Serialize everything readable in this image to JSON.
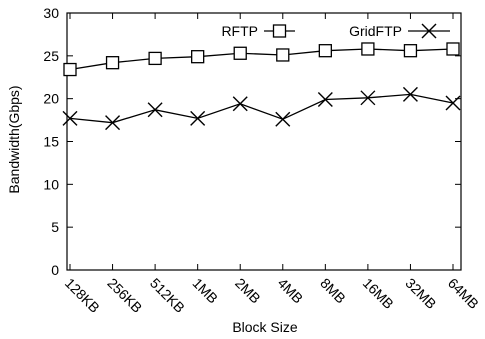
{
  "chart_data": {
    "type": "line",
    "title": "",
    "xlabel": "Block Size",
    "ylabel": "Bandwidth(Gbps)",
    "ylim": [
      0,
      30
    ],
    "yticks": [
      0,
      5,
      10,
      15,
      20,
      25,
      30
    ],
    "categories": [
      "128KB",
      "256KB",
      "512KB",
      "1MB",
      "2MB",
      "4MB",
      "8MB",
      "16MB",
      "32MB",
      "64MB"
    ],
    "grid": false,
    "legend_position": "top-right",
    "series": [
      {
        "name": "RFTP",
        "marker": "square",
        "color": "#000000",
        "values": [
          23.4,
          24.2,
          24.7,
          24.9,
          25.3,
          25.1,
          25.6,
          25.8,
          25.6,
          25.8
        ]
      },
      {
        "name": "GridFTP",
        "marker": "x",
        "color": "#000000",
        "values": [
          17.7,
          17.2,
          18.7,
          17.7,
          19.4,
          17.6,
          19.9,
          20.1,
          20.5,
          19.5
        ]
      }
    ]
  }
}
